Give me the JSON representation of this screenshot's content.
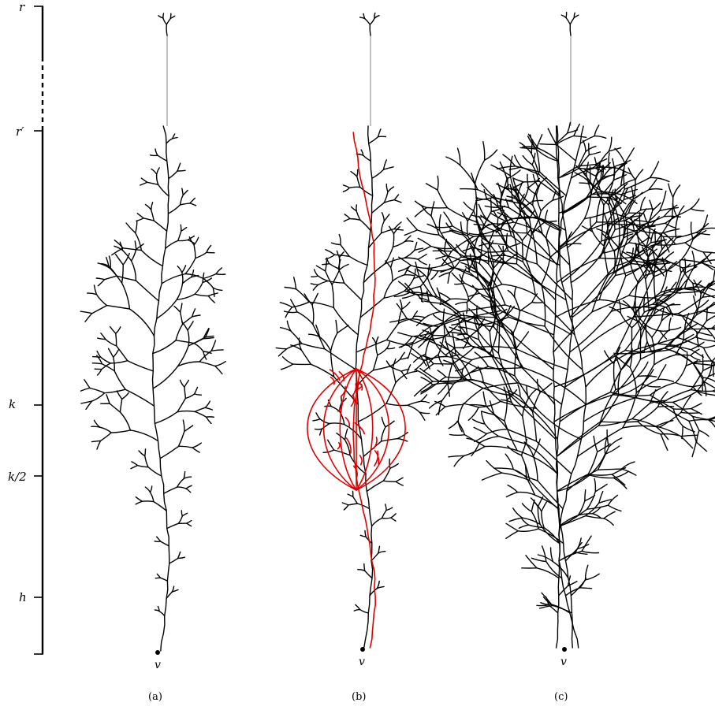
{
  "scale": {
    "levels": [
      {
        "id": "r",
        "label": "r"
      },
      {
        "id": "r-prime",
        "label": "r′"
      },
      {
        "id": "k",
        "label": "k"
      },
      {
        "id": "k-half",
        "label": "k/2"
      },
      {
        "id": "h",
        "label": "h"
      }
    ]
  },
  "panels": [
    {
      "id": "a",
      "caption": "(a)",
      "root_label": "v",
      "spread": "narrow",
      "highlight": "none"
    },
    {
      "id": "b",
      "caption": "(b)",
      "root_label": "v",
      "spread": "narrow",
      "highlight": "red path with braided region"
    },
    {
      "id": "c",
      "caption": "(c)",
      "root_label": "v",
      "spread": "wide",
      "highlight": "none"
    }
  ],
  "colors": {
    "tree": "#000000",
    "highlight": "#e00000",
    "top_stem": "#9a9a9a"
  }
}
